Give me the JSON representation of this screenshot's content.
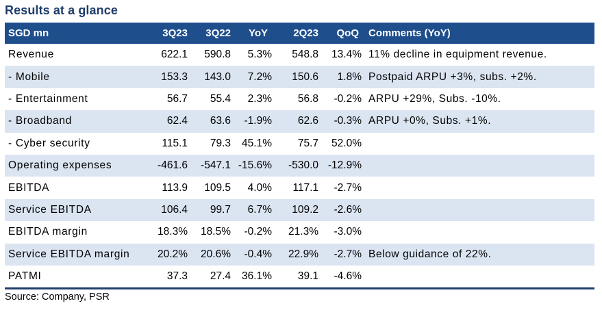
{
  "title": "Results at a glance",
  "source": "Source: Company, PSR",
  "table": {
    "headers": [
      "SGD mn",
      "3Q23",
      "3Q22",
      "YoY",
      "2Q23",
      "QoQ",
      "Comments (YoY)"
    ],
    "rows": [
      {
        "label": "Revenue",
        "q3_23": "622.1",
        "q3_22": "590.8",
        "yoy": "5.3%",
        "q2_23": "548.8",
        "qoq": "13.4%",
        "comment": "11% decline in equipment revenue."
      },
      {
        "label": " - Mobile",
        "q3_23": "153.3",
        "q3_22": "143.0",
        "yoy": "7.2%",
        "q2_23": "150.6",
        "qoq": "1.8%",
        "comment": "Postpaid ARPU +3%, subs. +2%."
      },
      {
        "label": " - Entertainment",
        "q3_23": "56.7",
        "q3_22": "55.4",
        "yoy": "2.3%",
        "q2_23": "56.8",
        "qoq": "-0.2%",
        "comment": "ARPU +29%, Subs. -10%."
      },
      {
        "label": " - Broadband",
        "q3_23": "62.4",
        "q3_22": "63.6",
        "yoy": "-1.9%",
        "q2_23": "62.6",
        "qoq": "-0.3%",
        "comment": "ARPU +0%, Subs. +1%."
      },
      {
        "label": " - Cyber security",
        "q3_23": "115.1",
        "q3_22": "79.3",
        "yoy": "45.1%",
        "q2_23": "75.7",
        "qoq": "52.0%",
        "comment": ""
      },
      {
        "label": "Operating expenses",
        "q3_23": "-461.6",
        "q3_22": "-547.1",
        "yoy": "-15.6%",
        "q2_23": "-530.0",
        "qoq": "-12.9%",
        "comment": ""
      },
      {
        "label": "EBITDA",
        "q3_23": "113.9",
        "q3_22": "109.5",
        "yoy": "4.0%",
        "q2_23": "117.1",
        "qoq": "-2.7%",
        "comment": ""
      },
      {
        "label": "Service EBITDA",
        "q3_23": "106.4",
        "q3_22": "99.7",
        "yoy": "6.7%",
        "q2_23": "109.2",
        "qoq": "-2.6%",
        "comment": ""
      },
      {
        "label": "EBITDA margin",
        "q3_23": "18.3%",
        "q3_22": "18.5%",
        "yoy": "-0.2%",
        "q2_23": "21.3%",
        "qoq": "-3.0%",
        "comment": ""
      },
      {
        "label": "Service EBITDA margin",
        "q3_23": "20.2%",
        "q3_22": "20.6%",
        "yoy": "-0.4%",
        "q2_23": "22.9%",
        "qoq": "-2.7%",
        "comment": "Below guidance of 22%."
      },
      {
        "label": "PATMI",
        "q3_23": "37.3",
        "q3_22": "27.4",
        "yoy": "36.1%",
        "q2_23": "39.1",
        "qoq": "-4.6%",
        "comment": ""
      }
    ]
  }
}
